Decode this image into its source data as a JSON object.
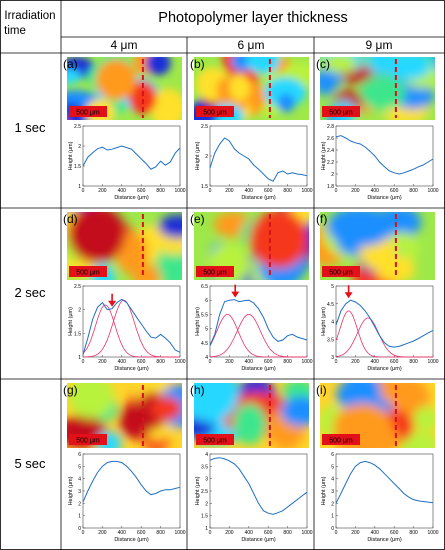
{
  "header": {
    "row_label_line1": "Irradiation",
    "row_label_line2": "time",
    "column_group_title": "Photopolymer layer thickness",
    "columns": [
      "4 μm",
      "6 μm",
      "9 μm"
    ]
  },
  "rows": [
    {
      "label": "1 sec"
    },
    {
      "label": "2 sec"
    },
    {
      "label": "5 sec"
    }
  ],
  "scale_bar_label": "500 μm",
  "chart_data": [
    {
      "type": "line",
      "panel": "(a)",
      "xlabel": "Distance (μm)",
      "ylabel": "Height (μm)",
      "xlim": [
        0,
        1000
      ],
      "ylim": [
        1,
        2.5
      ],
      "yticks": [
        1,
        1.5,
        2,
        2.5
      ],
      "xticks": [
        0,
        200,
        400,
        600,
        800,
        1000
      ],
      "x": [
        0,
        50,
        100,
        150,
        200,
        250,
        300,
        350,
        400,
        450,
        500,
        550,
        600,
        650,
        700,
        750,
        800,
        850,
        900,
        950,
        1000
      ],
      "y": [
        1.5,
        1.72,
        1.83,
        1.93,
        1.97,
        1.9,
        1.92,
        1.96,
        2.0,
        1.96,
        1.92,
        1.8,
        1.68,
        1.56,
        1.42,
        1.48,
        1.62,
        1.52,
        1.6,
        1.82,
        1.95
      ],
      "peak_markers": [],
      "gaussian_fits": []
    },
    {
      "type": "line",
      "panel": "(b)",
      "xlabel": "Distance (μm)",
      "ylabel": "Height (μm)",
      "xlim": [
        0,
        1000
      ],
      "ylim": [
        1.5,
        2.5
      ],
      "yticks": [
        1.5,
        2,
        2.5
      ],
      "xticks": [
        0,
        200,
        400,
        600,
        800,
        1000
      ],
      "x": [
        0,
        50,
        100,
        150,
        200,
        250,
        300,
        350,
        400,
        450,
        500,
        550,
        600,
        650,
        700,
        750,
        800,
        850,
        900,
        950,
        1000
      ],
      "y": [
        1.8,
        2.05,
        2.2,
        2.3,
        2.25,
        2.12,
        2.05,
        2.0,
        1.95,
        1.85,
        1.78,
        1.7,
        1.62,
        1.58,
        1.72,
        1.75,
        1.7,
        1.72,
        1.7,
        1.69,
        1.67
      ],
      "peak_markers": [],
      "gaussian_fits": []
    },
    {
      "type": "line",
      "panel": "(c)",
      "xlabel": "Distance (μm)",
      "ylabel": "Height (μm)",
      "xlim": [
        0,
        1000
      ],
      "ylim": [
        1.8,
        2.8
      ],
      "yticks": [
        1.8,
        2,
        2.2,
        2.4,
        2.6,
        2.8
      ],
      "xticks": [
        0,
        200,
        400,
        600,
        800,
        1000
      ],
      "x": [
        0,
        50,
        100,
        150,
        200,
        250,
        300,
        350,
        400,
        450,
        500,
        550,
        600,
        650,
        700,
        750,
        800,
        850,
        900,
        950,
        1000
      ],
      "y": [
        2.62,
        2.64,
        2.6,
        2.55,
        2.52,
        2.5,
        2.45,
        2.38,
        2.3,
        2.2,
        2.12,
        2.05,
        2.02,
        2.0,
        2.02,
        2.05,
        2.08,
        2.12,
        2.15,
        2.2,
        2.25
      ],
      "peak_markers": [],
      "gaussian_fits": []
    },
    {
      "type": "line",
      "panel": "(d)",
      "xlabel": "Distance (μm)",
      "ylabel": "Height (μm)",
      "xlim": [
        0,
        1000
      ],
      "ylim": [
        1,
        2.5
      ],
      "yticks": [
        1,
        1.5,
        2,
        2.5
      ],
      "xticks": [
        0,
        200,
        400,
        600,
        800,
        1000
      ],
      "x": [
        0,
        50,
        100,
        150,
        200,
        250,
        300,
        350,
        400,
        450,
        500,
        550,
        600,
        650,
        700,
        750,
        800,
        850,
        900,
        950,
        1000
      ],
      "y": [
        1.05,
        1.4,
        1.8,
        2.05,
        2.15,
        2.0,
        2.02,
        2.15,
        2.22,
        2.15,
        2.0,
        1.85,
        1.7,
        1.55,
        1.42,
        1.4,
        1.48,
        1.4,
        1.3,
        1.15,
        1.1
      ],
      "peak_markers": [
        300
      ],
      "gaussian_fits": [
        {
          "center": 230,
          "sigma": 100,
          "amplitude": 1.1
        },
        {
          "center": 420,
          "sigma": 110,
          "amplitude": 1.2
        }
      ]
    },
    {
      "type": "line",
      "panel": "(e)",
      "xlabel": "Distance (μm)",
      "ylabel": "Height (μm)",
      "xlim": [
        0,
        1000
      ],
      "ylim": [
        4,
        6.5
      ],
      "yticks": [
        4,
        4.5,
        5,
        5.5,
        6,
        6.5
      ],
      "xticks": [
        0,
        200,
        400,
        600,
        800,
        1000
      ],
      "x": [
        0,
        50,
        100,
        150,
        200,
        250,
        300,
        350,
        400,
        450,
        500,
        550,
        600,
        650,
        700,
        750,
        800,
        850,
        900,
        950,
        1000
      ],
      "y": [
        4.4,
        4.8,
        5.5,
        5.95,
        6.0,
        6.02,
        5.95,
        5.98,
        6.0,
        5.9,
        5.7,
        5.4,
        5.0,
        4.7,
        4.55,
        4.6,
        4.75,
        4.8,
        4.7,
        4.65,
        4.6
      ],
      "peak_markers": [
        260
      ],
      "gaussian_fits": [
        {
          "center": 180,
          "sigma": 110,
          "amplitude": 1.5
        },
        {
          "center": 400,
          "sigma": 120,
          "amplitude": 1.5
        }
      ]
    },
    {
      "type": "line",
      "panel": "(f)",
      "xlabel": "Distance (μm)",
      "ylabel": "Height (μm)",
      "xlim": [
        0,
        1000
      ],
      "ylim": [
        3,
        5
      ],
      "yticks": [
        3,
        3.5,
        4,
        4.5,
        5
      ],
      "xticks": [
        0,
        200,
        400,
        600,
        800,
        1000
      ],
      "x": [
        0,
        50,
        100,
        150,
        200,
        250,
        300,
        350,
        400,
        450,
        500,
        550,
        600,
        650,
        700,
        750,
        800,
        850,
        900,
        950,
        1000
      ],
      "y": [
        3.9,
        4.3,
        4.5,
        4.6,
        4.55,
        4.45,
        4.3,
        4.1,
        3.85,
        3.6,
        3.4,
        3.3,
        3.28,
        3.3,
        3.35,
        3.4,
        3.45,
        3.52,
        3.6,
        3.68,
        3.75
      ],
      "peak_markers": [
        130
      ],
      "gaussian_fits": [
        {
          "center": 130,
          "sigma": 90,
          "amplitude": 1.3
        },
        {
          "center": 330,
          "sigma": 110,
          "amplitude": 1.1
        }
      ]
    },
    {
      "type": "line",
      "panel": "(g)",
      "xlabel": "Distance (μm)",
      "ylabel": "Height (μm)",
      "xlim": [
        0,
        1000
      ],
      "ylim": [
        0,
        6
      ],
      "yticks": [
        0,
        1,
        2,
        3,
        4,
        5,
        6
      ],
      "xticks": [
        0,
        200,
        400,
        600,
        800,
        1000
      ],
      "x": [
        0,
        50,
        100,
        150,
        200,
        250,
        300,
        350,
        400,
        450,
        500,
        550,
        600,
        650,
        700,
        750,
        800,
        850,
        900,
        950,
        1000
      ],
      "y": [
        2.1,
        3.0,
        3.8,
        4.5,
        5.0,
        5.3,
        5.4,
        5.4,
        5.3,
        5.0,
        4.6,
        4.1,
        3.5,
        3.0,
        2.7,
        2.8,
        3.0,
        3.1,
        3.1,
        3.2,
        3.3
      ],
      "peak_markers": [],
      "gaussian_fits": []
    },
    {
      "type": "line",
      "panel": "(h)",
      "xlabel": "Distance (μm)",
      "ylabel": "Height (μm)",
      "xlim": [
        0,
        1000
      ],
      "ylim": [
        1,
        4
      ],
      "yticks": [
        1,
        1.5,
        2,
        2.5,
        3,
        3.5,
        4
      ],
      "xticks": [
        0,
        200,
        400,
        600,
        800,
        1000
      ],
      "x": [
        0,
        50,
        100,
        150,
        200,
        250,
        300,
        350,
        400,
        450,
        500,
        550,
        600,
        650,
        700,
        750,
        800,
        850,
        900,
        950,
        1000
      ],
      "y": [
        3.75,
        3.82,
        3.85,
        3.8,
        3.72,
        3.6,
        3.4,
        3.1,
        2.8,
        2.4,
        2.0,
        1.7,
        1.6,
        1.55,
        1.62,
        1.7,
        1.85,
        2.0,
        2.15,
        2.3,
        2.45
      ],
      "peak_markers": [],
      "gaussian_fits": []
    },
    {
      "type": "line",
      "panel": "(i)",
      "xlabel": "Distance (μm)",
      "ylabel": "Height (μm)",
      "xlim": [
        0,
        1000
      ],
      "ylim": [
        0,
        6
      ],
      "yticks": [
        0,
        1,
        2,
        3,
        4,
        5,
        6
      ],
      "xticks": [
        0,
        200,
        400,
        600,
        800,
        1000
      ],
      "x": [
        0,
        50,
        100,
        150,
        200,
        250,
        300,
        350,
        400,
        450,
        500,
        550,
        600,
        650,
        700,
        750,
        800,
        850,
        900,
        950,
        1000
      ],
      "y": [
        2.0,
        2.8,
        3.6,
        4.4,
        5.0,
        5.3,
        5.4,
        5.3,
        5.1,
        4.8,
        4.4,
        4.0,
        3.6,
        3.2,
        2.8,
        2.5,
        2.3,
        2.2,
        2.15,
        2.1,
        2.05
      ],
      "peak_markers": [],
      "gaussian_fits": []
    }
  ]
}
